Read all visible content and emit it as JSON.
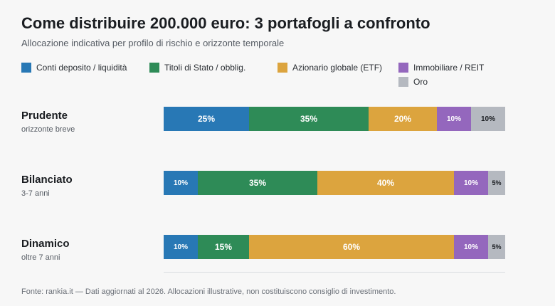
{
  "title": "Come distribuire 200.000 euro: 3 portafogli a confronto",
  "subtitle": "Allocazione indicativa per profilo di rischio e orizzonte temporale",
  "footer": "Fonte: rankia.it — Dati aggiornati al 2026. Allocazioni illustrative, non costituiscono consiglio di investimento.",
  "chart_data": {
    "type": "bar",
    "orientation": "horizontal",
    "stacked": true,
    "unit": "%",
    "xlim": [
      0,
      100
    ],
    "legend": "top",
    "categories": [
      {
        "name": "Prudente",
        "subtitle": "orizzonte breve"
      },
      {
        "name": "Bilanciato",
        "subtitle": "3-7 anni"
      },
      {
        "name": "Dinamico",
        "subtitle": "oltre 7 anni"
      }
    ],
    "series": [
      {
        "name": "Conti deposito / liquidità",
        "color": "#2878b5",
        "text_color": "#ffffff",
        "values": [
          25,
          10,
          10
        ]
      },
      {
        "name": "Titoli di Stato / obblig.",
        "color": "#2e8b57",
        "text_color": "#ffffff",
        "values": [
          35,
          35,
          15
        ]
      },
      {
        "name": "Azionario globale (ETF)",
        "color": "#dca43e",
        "text_color": "#ffffff",
        "values": [
          20,
          40,
          60
        ]
      },
      {
        "name": "Immobiliare / REIT",
        "color": "#9467bd",
        "text_color": "#ffffff",
        "values": [
          10,
          10,
          10
        ]
      },
      {
        "name": "Oro",
        "color": "#b5b9c0",
        "text_color": "#1a1d21",
        "values": [
          10,
          5,
          5
        ]
      }
    ]
  }
}
